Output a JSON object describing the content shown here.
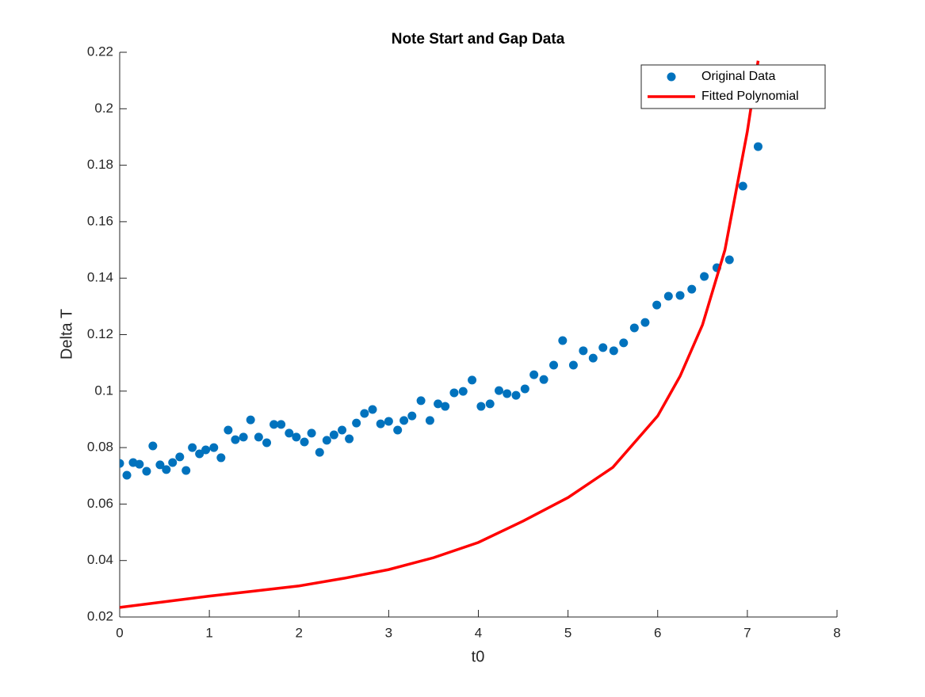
{
  "chart_data": {
    "type": "scatter",
    "title": "Note Start and Gap Data",
    "x_label": "t0",
    "y_label": "Delta T",
    "xlim": [
      0,
      8
    ],
    "ylim": [
      0.02,
      0.22
    ],
    "xticks": [
      0,
      1,
      2,
      3,
      4,
      5,
      6,
      7,
      8
    ],
    "yticks": [
      0.02,
      0.04,
      0.06,
      0.08,
      0.1,
      0.12,
      0.14,
      0.16,
      0.18,
      0.2,
      0.22
    ],
    "grid": false,
    "legend": "northeast",
    "series": [
      {
        "name": "Original Data",
        "type": "scatter",
        "color": "#0072bd",
        "x": [
          0,
          0.08,
          0.15,
          0.22,
          0.3,
          0.37,
          0.45,
          0.52,
          0.59,
          0.67,
          0.74,
          0.81,
          0.89,
          0.96,
          1.05,
          1.13,
          1.21,
          1.29,
          1.38,
          1.46,
          1.55,
          1.64,
          1.72,
          1.8,
          1.89,
          1.97,
          2.06,
          2.14,
          2.23,
          2.31,
          2.39,
          2.48,
          2.56,
          2.64,
          2.73,
          2.82,
          2.91,
          3.0,
          3.1,
          3.17,
          3.26,
          3.36,
          3.46,
          3.55,
          3.63,
          3.73,
          3.83,
          3.93,
          4.03,
          4.13,
          4.23,
          4.32,
          4.42,
          4.52,
          4.62,
          4.73,
          4.84,
          4.94,
          5.06,
          5.17,
          5.28,
          5.39,
          5.51,
          5.62,
          5.74,
          5.86,
          5.99,
          6.12,
          6.25,
          6.38,
          6.52,
          6.66,
          6.8,
          6.95,
          7.12
        ],
        "values": [
          0.0744,
          0.0702,
          0.0747,
          0.0741,
          0.0716,
          0.0806,
          0.0739,
          0.0722,
          0.0747,
          0.0767,
          0.0719,
          0.08,
          0.0778,
          0.0792,
          0.08,
          0.0764,
          0.0862,
          0.0828,
          0.0837,
          0.0898,
          0.0837,
          0.0817,
          0.0882,
          0.0882,
          0.0851,
          0.0837,
          0.082,
          0.0851,
          0.0783,
          0.0826,
          0.0845,
          0.0862,
          0.0831,
          0.0887,
          0.0921,
          0.0935,
          0.0884,
          0.0893,
          0.0862,
          0.0896,
          0.0912,
          0.0966,
          0.0896,
          0.0955,
          0.0946,
          0.0994,
          0.0999,
          0.1039,
          0.0946,
          0.0955,
          0.1002,
          0.0991,
          0.0985,
          0.1008,
          0.1058,
          0.1041,
          0.1092,
          0.1179,
          0.1092,
          0.1143,
          0.1117,
          0.1154,
          0.1143,
          0.1171,
          0.1224,
          0.1243,
          0.1305,
          0.1336,
          0.1339,
          0.1361,
          0.1406,
          0.1437,
          0.1465,
          0.1726,
          0.1866
        ]
      },
      {
        "name": "Fitted Polynomial",
        "type": "line",
        "color": "#ff0000",
        "x": [
          0,
          0.5,
          1,
          1.5,
          2,
          2.5,
          3,
          3.5,
          4,
          4.5,
          5,
          5.5,
          6,
          6.25,
          6.5,
          6.75,
          7,
          7.12
        ],
        "values": [
          0.0234,
          0.0254,
          0.0274,
          0.0292,
          0.031,
          0.0337,
          0.0368,
          0.041,
          0.0464,
          0.054,
          0.0623,
          0.073,
          0.0912,
          0.1053,
          0.1235,
          0.15,
          0.192,
          0.217
        ]
      }
    ]
  }
}
